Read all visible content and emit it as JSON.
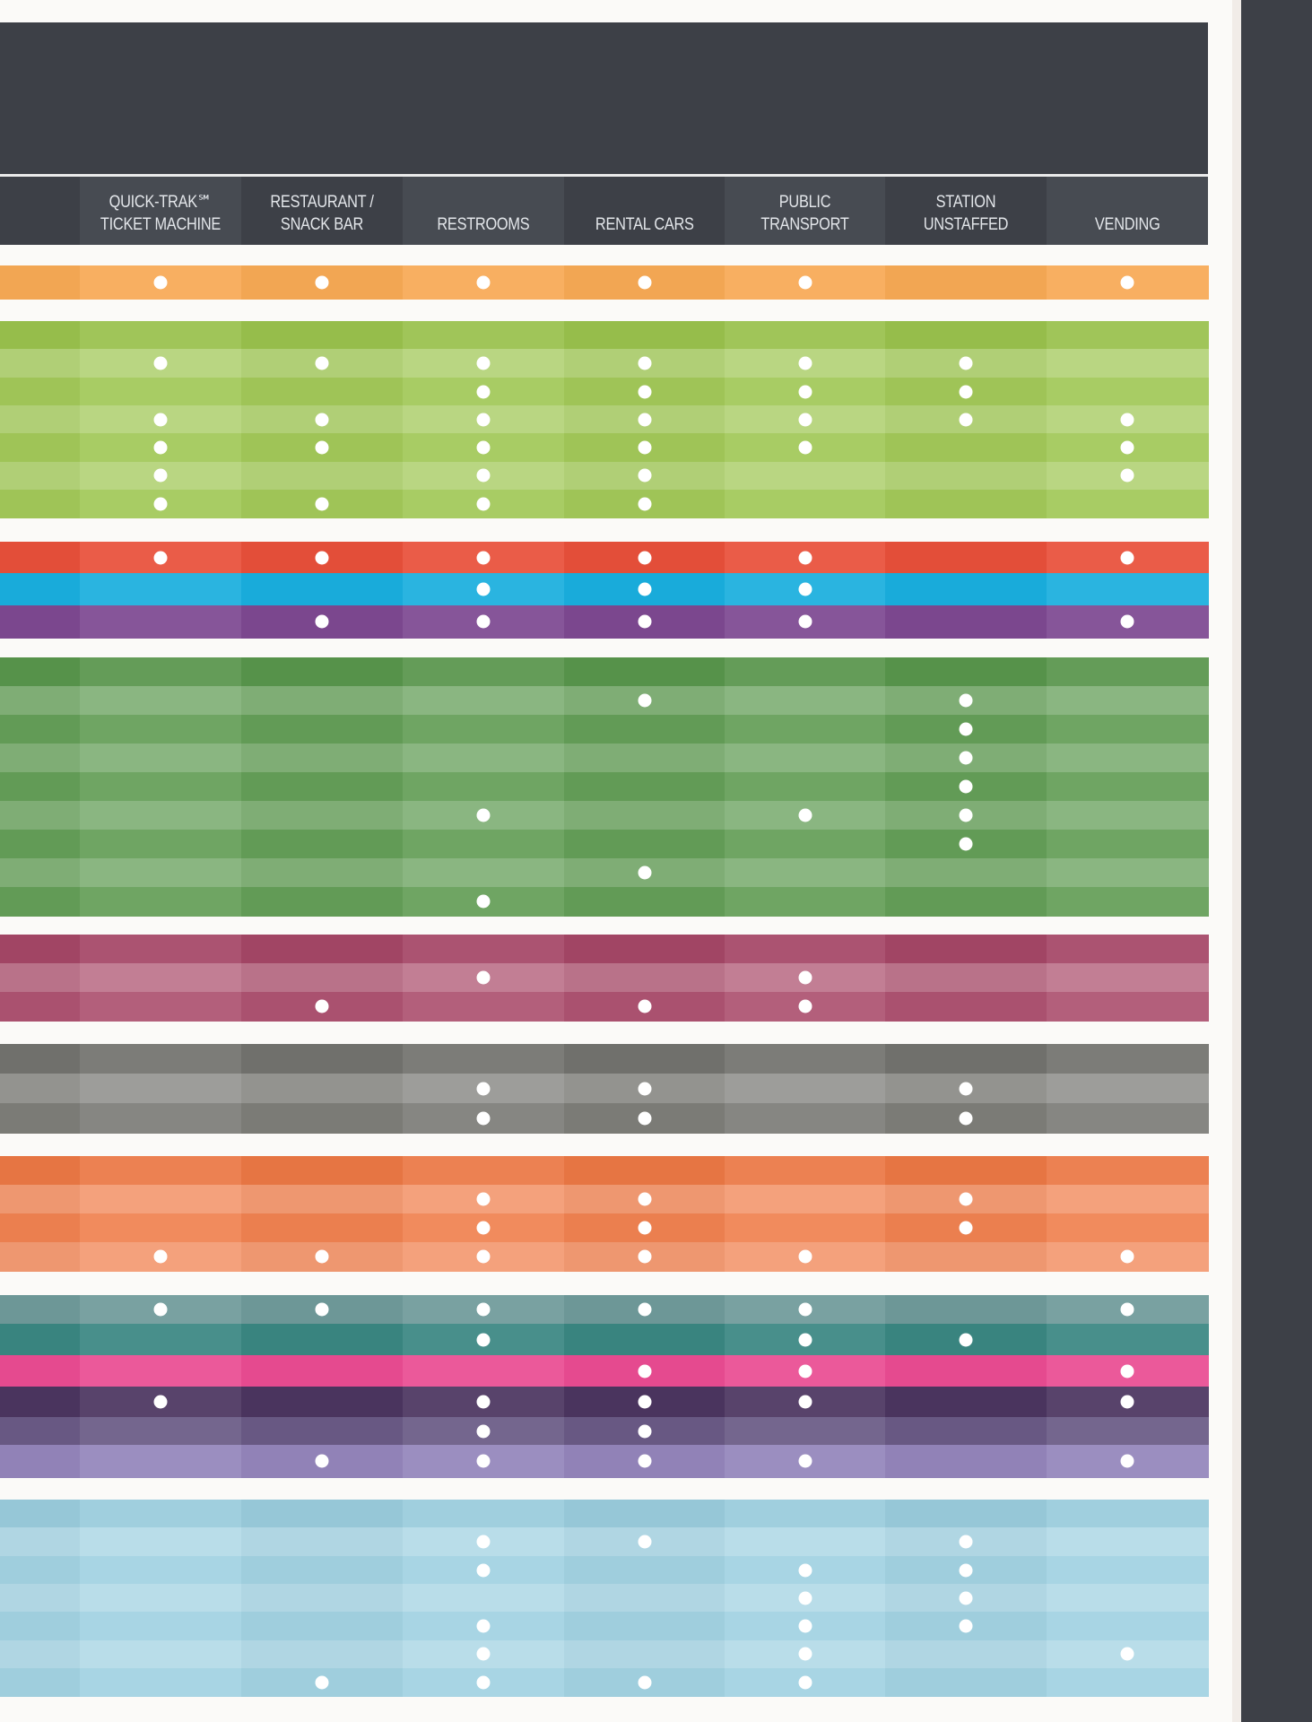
{
  "columns": [
    {
      "key": "quick_trak",
      "label": "QUICK-TRAK℠\nTICKET MACHINE"
    },
    {
      "key": "restaurant",
      "label": "RESTAURANT /\nSNACK BAR"
    },
    {
      "key": "restrooms",
      "label": "RESTROOMS"
    },
    {
      "key": "rental_cars",
      "label": "RENTAL CARS"
    },
    {
      "key": "public_transport",
      "label": "PUBLIC TRANSPORT"
    },
    {
      "key": "station_unstaffed",
      "label": "STATION\nUNSTAFFED"
    },
    {
      "key": "vending",
      "label": "VENDING"
    }
  ],
  "colors": {
    "header_background": "#3d4047",
    "header_text": "#e3e6ea",
    "page_background": "#fbfaf8",
    "dot": "#ffffff"
  },
  "groups": [
    {
      "name": "orange",
      "color": "#f7a955",
      "rows": [
        [
          1,
          1,
          1,
          1,
          1,
          0,
          1
        ]
      ]
    },
    {
      "name": "light-green",
      "color": "#9cc54e",
      "rows": [
        [
          0,
          0,
          0,
          0,
          0,
          0,
          0
        ],
        [
          1,
          1,
          1,
          1,
          1,
          1,
          0
        ],
        [
          0,
          0,
          1,
          1,
          1,
          1,
          0
        ],
        [
          1,
          1,
          1,
          1,
          1,
          1,
          1
        ],
        [
          1,
          1,
          1,
          1,
          1,
          0,
          1
        ],
        [
          1,
          0,
          1,
          1,
          0,
          0,
          1
        ],
        [
          1,
          1,
          1,
          1,
          0,
          0,
          0
        ]
      ]
    },
    {
      "name": "red",
      "color": "#e8503a",
      "rows": [
        [
          1,
          1,
          1,
          1,
          1,
          0,
          1
        ]
      ]
    },
    {
      "name": "blue",
      "color": "#1aaede",
      "rows": [
        [
          0,
          0,
          1,
          1,
          1,
          0,
          0
        ]
      ]
    },
    {
      "name": "purple",
      "color": "#7d4891",
      "rows": [
        [
          0,
          1,
          1,
          1,
          1,
          0,
          1
        ]
      ]
    },
    {
      "name": "green",
      "color": "#5a984d",
      "rows": [
        [
          0,
          0,
          0,
          0,
          0,
          0,
          0
        ],
        [
          0,
          0,
          0,
          1,
          0,
          1,
          0
        ],
        [
          0,
          0,
          0,
          0,
          0,
          1,
          0
        ],
        [
          0,
          0,
          0,
          0,
          0,
          1,
          0
        ],
        [
          0,
          0,
          0,
          0,
          0,
          1,
          0
        ],
        [
          0,
          0,
          1,
          0,
          1,
          1,
          0
        ],
        [
          0,
          0,
          0,
          0,
          0,
          1,
          0
        ],
        [
          0,
          0,
          0,
          1,
          0,
          0,
          0
        ],
        [
          0,
          0,
          1,
          0,
          0,
          0,
          0
        ]
      ]
    },
    {
      "name": "maroon",
      "color": "#a84868",
      "rows": [
        [
          0,
          0,
          0,
          0,
          0,
          0,
          0
        ],
        [
          0,
          0,
          1,
          0,
          1,
          0,
          0
        ],
        [
          0,
          1,
          0,
          1,
          1,
          0,
          0
        ]
      ]
    },
    {
      "name": "gray",
      "color": "#757570",
      "rows": [
        [
          0,
          0,
          0,
          0,
          0,
          0,
          0
        ],
        [
          0,
          0,
          1,
          1,
          0,
          1,
          0
        ],
        [
          0,
          0,
          1,
          1,
          0,
          1,
          0
        ]
      ]
    },
    {
      "name": "coral",
      "color": "#ef7a46",
      "rows": [
        [
          0,
          0,
          0,
          0,
          0,
          0,
          0
        ],
        [
          0,
          0,
          1,
          1,
          0,
          1,
          0
        ],
        [
          0,
          0,
          1,
          1,
          0,
          1,
          0
        ],
        [
          1,
          1,
          1,
          1,
          1,
          0,
          1
        ]
      ]
    },
    {
      "name": "teal-gray",
      "color": "#6f9a9a",
      "rows": [
        [
          1,
          1,
          1,
          1,
          1,
          0,
          1
        ]
      ]
    },
    {
      "name": "teal",
      "color": "#3a8782",
      "rows": [
        [
          0,
          0,
          1,
          0,
          1,
          1,
          0
        ]
      ]
    },
    {
      "name": "pink",
      "color": "#ea4c92",
      "rows": [
        [
          0,
          0,
          0,
          1,
          1,
          0,
          1
        ]
      ]
    },
    {
      "name": "dark-purple",
      "color": "#4b3560",
      "rows": [
        [
          1,
          0,
          1,
          1,
          1,
          0,
          1
        ]
      ]
    },
    {
      "name": "mid-purple",
      "color": "#6a5a86",
      "rows": [
        [
          0,
          0,
          1,
          1,
          0,
          0,
          0
        ]
      ]
    },
    {
      "name": "lavender",
      "color": "#9485bb",
      "rows": [
        [
          0,
          1,
          1,
          1,
          1,
          0,
          1
        ]
      ]
    },
    {
      "name": "light-blue",
      "color": "#9ccfe0",
      "rows": [
        [
          0,
          0,
          0,
          0,
          0,
          0,
          0
        ],
        [
          0,
          0,
          1,
          1,
          0,
          1,
          0
        ],
        [
          0,
          0,
          1,
          0,
          1,
          1,
          0
        ],
        [
          0,
          0,
          0,
          0,
          1,
          1,
          0
        ],
        [
          0,
          0,
          1,
          0,
          1,
          1,
          0
        ],
        [
          0,
          0,
          1,
          0,
          1,
          0,
          1
        ],
        [
          0,
          1,
          1,
          1,
          1,
          0,
          0
        ]
      ]
    }
  ]
}
